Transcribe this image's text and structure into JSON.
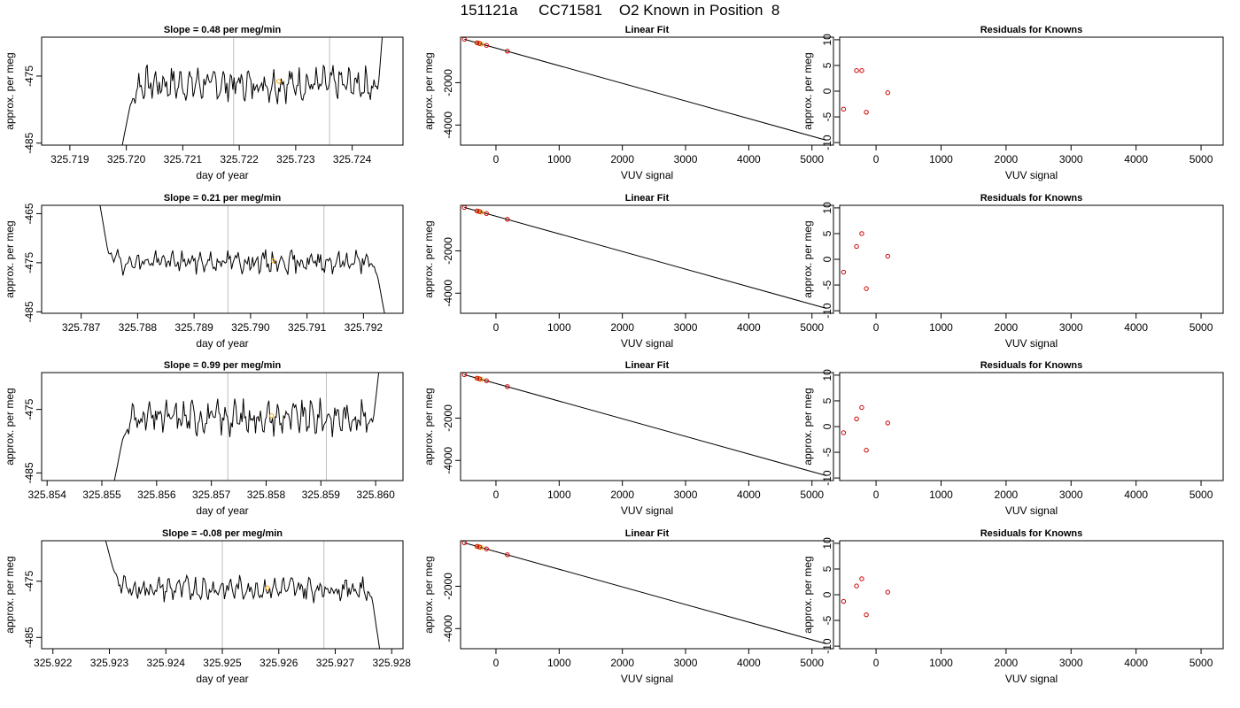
{
  "page_title": "151121a     CC71581    O2 Known in Position  8",
  "colors": {
    "trace": "#000000",
    "marker_orange": "#FFA500",
    "marker_red": "#CC0000",
    "vline": "#BEBEBE"
  },
  "chart_data": [
    {
      "type": "line",
      "row": 1,
      "col": 1,
      "title": "Slope =  0.48  per meg/min",
      "xlabel": "day of year",
      "ylabel": "approx. per meg",
      "xlim": [
        325.7185,
        325.7249
      ],
      "ylim": [
        -485.3,
        -469.2
      ],
      "xticks": [
        "325.719",
        "325.720",
        "325.721",
        "325.722",
        "325.723",
        "325.724"
      ],
      "yticks": [
        -485,
        -475
      ],
      "vlines": [
        325.7219,
        325.7236
      ],
      "trace": {
        "start": 325.7199,
        "end": 325.7246,
        "level": -476.2,
        "noise": 1.5,
        "seed": 7,
        "head": [
          -486.5,
          -479.5
        ],
        "tail": [
          -477.0,
          -462.0
        ]
      },
      "orange_point": [
        325.7227,
        -475.8
      ]
    },
    {
      "type": "scatter",
      "row": 1,
      "col": 2,
      "title": "Linear Fit",
      "xlabel": "VUV signal",
      "ylabel": "approx. per meg",
      "xlim": [
        -560,
        5340
      ],
      "ylim": [
        -4950,
        150
      ],
      "xticks": [
        0,
        1000,
        2000,
        3000,
        4000,
        5000
      ],
      "yticks": [
        -2000,
        -4000
      ],
      "fit_line": [
        [
          -500,
          50
        ],
        [
          5230,
          -4720
        ]
      ],
      "red_points": [
        [
          -500,
          50
        ],
        [
          -300,
          -115
        ],
        [
          -260,
          -148
        ],
        [
          -150,
          -237
        ],
        [
          180,
          -510
        ]
      ],
      "orange_points": [
        [
          -280,
          -132
        ],
        [
          -230,
          -170
        ]
      ]
    },
    {
      "type": "scatter",
      "row": 1,
      "col": 3,
      "title": "Residuals for Knowns",
      "xlabel": "VUV signal",
      "ylabel": "approx. per meg",
      "xlim": [
        -560,
        5340
      ],
      "ylim": [
        -10.5,
        10.5
      ],
      "xticks": [
        0,
        1000,
        2000,
        3000,
        4000,
        5000
      ],
      "yticks": [
        -10,
        -5,
        0,
        5,
        10
      ],
      "red_points": [
        [
          -500,
          -3.5
        ],
        [
          -300,
          4.0
        ],
        [
          -220,
          4.0
        ],
        [
          -150,
          -4.1
        ],
        [
          180,
          -0.3
        ]
      ]
    },
    {
      "type": "line",
      "row": 2,
      "col": 1,
      "title": "Slope =  0.21  per meg/min",
      "xlabel": "day of year",
      "ylabel": "approx. per meg",
      "xlim": [
        325.7863,
        325.7927
      ],
      "ylim": [
        -485.3,
        -463.3
      ],
      "xticks": [
        "325.787",
        "325.788",
        "325.789",
        "325.790",
        "325.791",
        "325.792"
      ],
      "yticks": [
        -485,
        -475,
        -465
      ],
      "vlines": [
        325.7896,
        325.7913
      ],
      "trace": {
        "start": 325.7873,
        "end": 325.7924,
        "level": -474.8,
        "noise": 1.4,
        "seed": 19,
        "head": [
          -461.0,
          -473.0
        ],
        "tail": [
          -477.5,
          -487.0
        ]
      },
      "orange_point": [
        325.7904,
        -474.6
      ]
    },
    {
      "type": "scatter",
      "row": 2,
      "col": 2,
      "title": "Linear Fit",
      "xlabel": "VUV signal",
      "ylabel": "approx. per meg",
      "xlim": [
        -560,
        5340
      ],
      "ylim": [
        -4950,
        150
      ],
      "xticks": [
        0,
        1000,
        2000,
        3000,
        4000,
        5000
      ],
      "yticks": [
        -2000,
        -4000
      ],
      "fit_line": [
        [
          -500,
          50
        ],
        [
          5230,
          -4720
        ]
      ],
      "red_points": [
        [
          -500,
          50
        ],
        [
          -300,
          -115
        ],
        [
          -260,
          -148
        ],
        [
          -150,
          -237
        ],
        [
          180,
          -510
        ]
      ],
      "orange_points": [
        [
          -280,
          -132
        ],
        [
          -230,
          -170
        ]
      ]
    },
    {
      "type": "scatter",
      "row": 2,
      "col": 3,
      "title": "Residuals for Knowns",
      "xlabel": "VUV signal",
      "ylabel": "approx. per meg",
      "xlim": [
        -560,
        5340
      ],
      "ylim": [
        -10.5,
        10.5
      ],
      "xticks": [
        0,
        1000,
        2000,
        3000,
        4000,
        5000
      ],
      "yticks": [
        -10,
        -5,
        0,
        5,
        10
      ],
      "red_points": [
        [
          -500,
          -2.5
        ],
        [
          -300,
          2.5
        ],
        [
          -220,
          5.0
        ],
        [
          -150,
          -5.7
        ],
        [
          180,
          0.6
        ]
      ]
    },
    {
      "type": "line",
      "row": 3,
      "col": 1,
      "title": "Slope =  0.99  per meg/min",
      "xlabel": "day of year",
      "ylabel": "approx. per meg",
      "xlim": [
        325.8539,
        325.8605
      ],
      "ylim": [
        -486.2,
        -469.2
      ],
      "xticks": [
        "325.854",
        "325.855",
        "325.856",
        "325.857",
        "325.858",
        "325.859",
        "325.860"
      ],
      "yticks": [
        -485,
        -475
      ],
      "vlines": [
        325.8573,
        325.8591
      ],
      "trace": {
        "start": 325.8552,
        "end": 325.8601,
        "level": -476.3,
        "noise": 1.6,
        "seed": 31,
        "head": [
          -487.5,
          -480.0
        ],
        "tail": [
          -477.0,
          -466.0
        ]
      },
      "orange_point": [
        325.8581,
        -476.0
      ]
    },
    {
      "type": "scatter",
      "row": 3,
      "col": 2,
      "title": "Linear Fit",
      "xlabel": "VUV signal",
      "ylabel": "approx. per meg",
      "xlim": [
        -560,
        5340
      ],
      "ylim": [
        -4950,
        150
      ],
      "xticks": [
        0,
        1000,
        2000,
        3000,
        4000,
        5000
      ],
      "yticks": [
        -2000,
        -4000
      ],
      "fit_line": [
        [
          -500,
          50
        ],
        [
          5230,
          -4720
        ]
      ],
      "red_points": [
        [
          -500,
          50
        ],
        [
          -300,
          -115
        ],
        [
          -260,
          -148
        ],
        [
          -150,
          -237
        ],
        [
          180,
          -510
        ]
      ],
      "orange_points": [
        [
          -280,
          -132
        ],
        [
          -230,
          -170
        ]
      ]
    },
    {
      "type": "scatter",
      "row": 3,
      "col": 3,
      "title": "Residuals for Knowns",
      "xlabel": "VUV signal",
      "ylabel": "approx. per meg",
      "xlim": [
        -560,
        5340
      ],
      "ylim": [
        -10.5,
        10.5
      ],
      "xticks": [
        0,
        1000,
        2000,
        3000,
        4000,
        5000
      ],
      "yticks": [
        -10,
        -5,
        0,
        5,
        10
      ],
      "red_points": [
        [
          -500,
          -1.2
        ],
        [
          -300,
          1.5
        ],
        [
          -220,
          3.7
        ],
        [
          -150,
          -4.6
        ],
        [
          180,
          0.7
        ]
      ]
    },
    {
      "type": "line",
      "row": 4,
      "col": 1,
      "title": "Slope =  -0.08  per meg/min",
      "xlabel": "day of year",
      "ylabel": "approx. per meg",
      "xlim": [
        325.9218,
        325.9282
      ],
      "ylim": [
        -487.0,
        -467.8
      ],
      "xticks": [
        "325.922",
        "325.923",
        "325.924",
        "325.925",
        "325.926",
        "325.927",
        "325.928"
      ],
      "yticks": [
        -485,
        -475
      ],
      "vlines": [
        325.925,
        325.9268
      ],
      "trace": {
        "start": 325.9229,
        "end": 325.9278,
        "level": -476.3,
        "noise": 1.3,
        "seed": 43,
        "head": [
          -466.5,
          -473.0
        ],
        "tail": [
          -478.0,
          -488.0
        ]
      },
      "orange_point": [
        325.9258,
        -476.2
      ]
    },
    {
      "type": "scatter",
      "row": 4,
      "col": 2,
      "title": "Linear Fit",
      "xlabel": "VUV signal",
      "ylabel": "approx. per meg",
      "xlim": [
        -560,
        5340
      ],
      "ylim": [
        -4950,
        150
      ],
      "xticks": [
        0,
        1000,
        2000,
        3000,
        4000,
        5000
      ],
      "yticks": [
        -2000,
        -4000
      ],
      "fit_line": [
        [
          -500,
          50
        ],
        [
          5230,
          -4720
        ]
      ],
      "red_points": [
        [
          -500,
          50
        ],
        [
          -300,
          -115
        ],
        [
          -260,
          -148
        ],
        [
          -150,
          -237
        ],
        [
          180,
          -510
        ]
      ],
      "orange_points": [
        [
          -280,
          -132
        ],
        [
          -230,
          -170
        ]
      ]
    },
    {
      "type": "scatter",
      "row": 4,
      "col": 3,
      "title": "Residuals for Knowns",
      "xlabel": "VUV signal",
      "ylabel": "approx. per meg",
      "xlim": [
        -560,
        5340
      ],
      "ylim": [
        -10.5,
        10.5
      ],
      "xticks": [
        0,
        1000,
        2000,
        3000,
        4000,
        5000
      ],
      "yticks": [
        -10,
        -5,
        0,
        5,
        10
      ],
      "red_points": [
        [
          -500,
          -1.3
        ],
        [
          -300,
          1.7
        ],
        [
          -220,
          3.1
        ],
        [
          -150,
          -3.9
        ],
        [
          180,
          0.5
        ]
      ]
    }
  ]
}
